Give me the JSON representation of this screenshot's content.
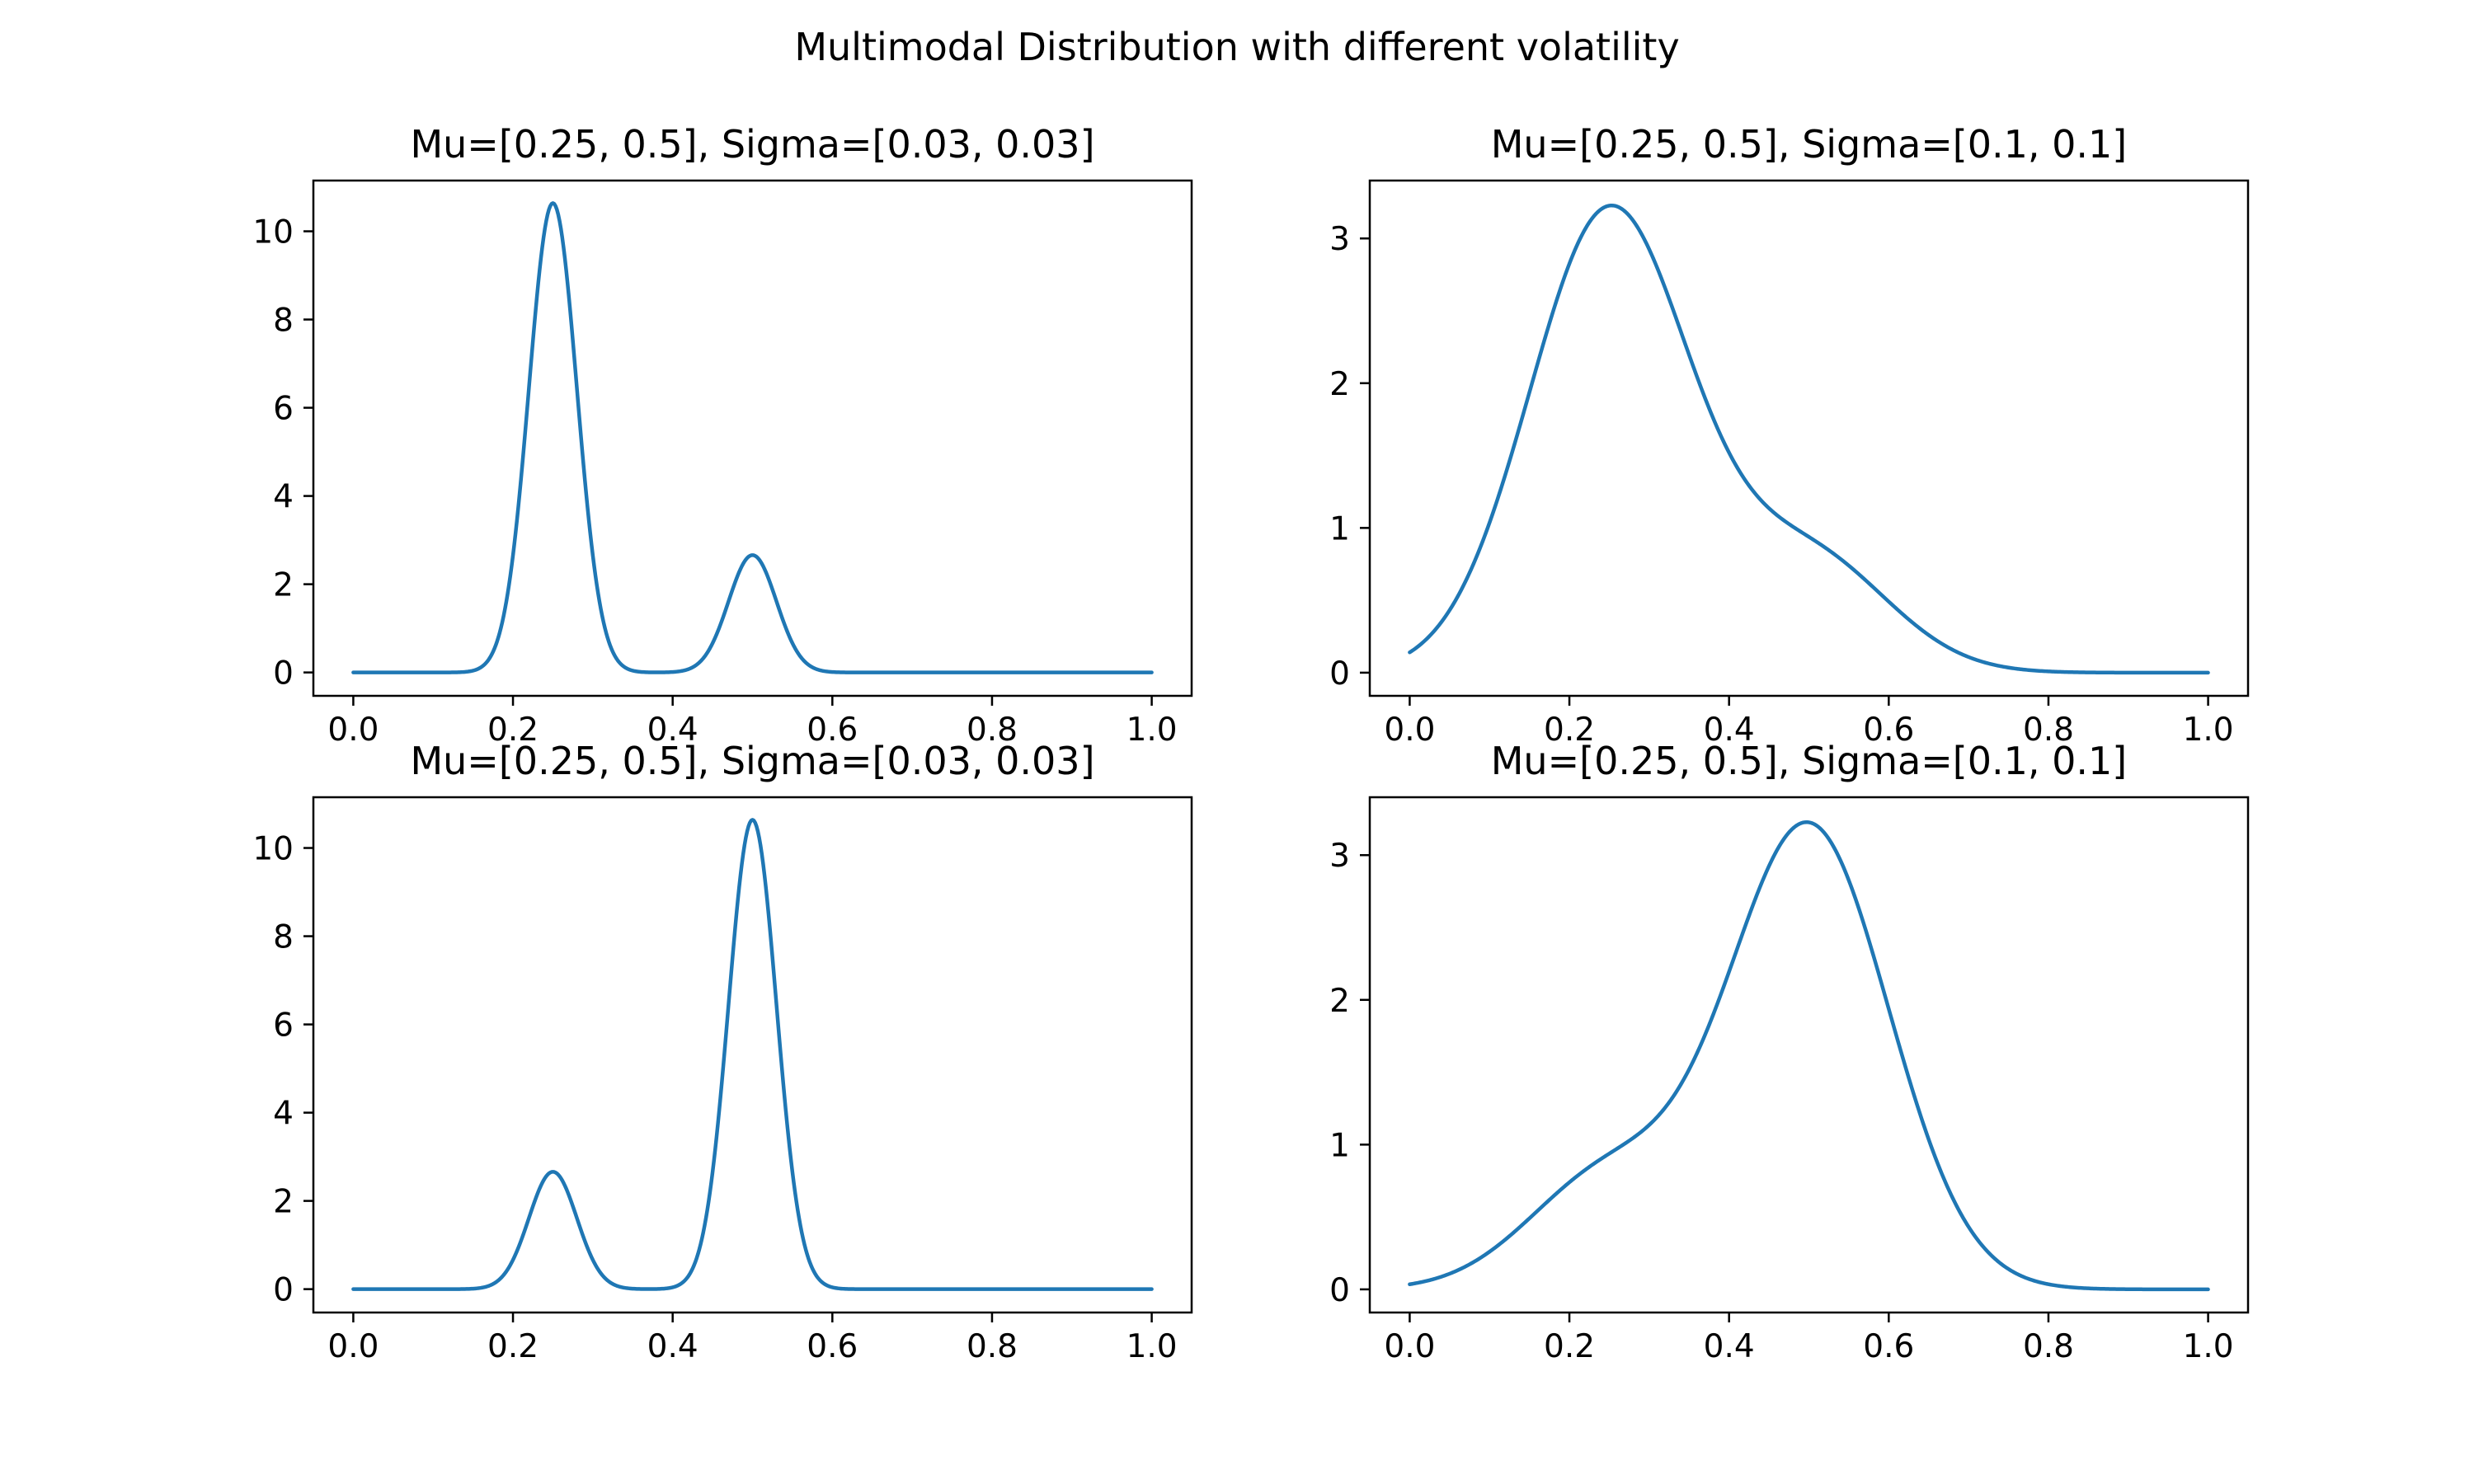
{
  "figure": {
    "suptitle": "Multimodal Distribution with different volatility"
  },
  "chart_data": [
    {
      "type": "line",
      "title": "Mu=[0.25, 0.5], Sigma=[0.03, 0.03]",
      "weights": [
        0.8,
        0.2
      ],
      "mu": [
        0.25,
        0.5
      ],
      "sigma": [
        0.03,
        0.03
      ],
      "x_range": [
        0.0,
        1.0
      ],
      "xlim": [
        -0.05,
        1.05
      ],
      "ylim": [
        -0.53,
        11.15
      ],
      "xticks": [
        0.0,
        0.2,
        0.4,
        0.6,
        0.8,
        1.0
      ],
      "xtick_labels": [
        "0.0",
        "0.2",
        "0.4",
        "0.6",
        "0.8",
        "1.0"
      ],
      "yticks": [
        0,
        2,
        4,
        6,
        8,
        10
      ],
      "ytick_labels": [
        "0",
        "2",
        "4",
        "6",
        "8",
        "10"
      ],
      "color": "#1f77b4"
    },
    {
      "type": "line",
      "title": "Mu=[0.25, 0.5], Sigma=[0.1, 0.1]",
      "weights": [
        0.8,
        0.2
      ],
      "mu": [
        0.25,
        0.5
      ],
      "sigma": [
        0.1,
        0.1
      ],
      "x_range": [
        0.0,
        1.0
      ],
      "xlim": [
        -0.05,
        1.05
      ],
      "ylim": [
        -0.16,
        3.4
      ],
      "xticks": [
        0.0,
        0.2,
        0.4,
        0.6,
        0.8,
        1.0
      ],
      "xtick_labels": [
        "0.0",
        "0.2",
        "0.4",
        "0.6",
        "0.8",
        "1.0"
      ],
      "yticks": [
        0,
        1,
        2,
        3
      ],
      "ytick_labels": [
        "0",
        "1",
        "2",
        "3"
      ],
      "color": "#1f77b4"
    },
    {
      "type": "line",
      "title": "Mu=[0.25, 0.5], Sigma=[0.03, 0.03]",
      "weights": [
        0.2,
        0.8
      ],
      "mu": [
        0.25,
        0.5
      ],
      "sigma": [
        0.03,
        0.03
      ],
      "x_range": [
        0.0,
        1.0
      ],
      "xlim": [
        -0.05,
        1.05
      ],
      "ylim": [
        -0.53,
        11.15
      ],
      "xticks": [
        0.0,
        0.2,
        0.4,
        0.6,
        0.8,
        1.0
      ],
      "xtick_labels": [
        "0.0",
        "0.2",
        "0.4",
        "0.6",
        "0.8",
        "1.0"
      ],
      "yticks": [
        0,
        2,
        4,
        6,
        8,
        10
      ],
      "ytick_labels": [
        "0",
        "2",
        "4",
        "6",
        "8",
        "10"
      ],
      "color": "#1f77b4"
    },
    {
      "type": "line",
      "title": "Mu=[0.25, 0.5], Sigma=[0.1, 0.1]",
      "weights": [
        0.2,
        0.8
      ],
      "mu": [
        0.25,
        0.5
      ],
      "sigma": [
        0.1,
        0.1
      ],
      "x_range": [
        0.0,
        1.0
      ],
      "xlim": [
        -0.05,
        1.05
      ],
      "ylim": [
        -0.16,
        3.4
      ],
      "xticks": [
        0.0,
        0.2,
        0.4,
        0.6,
        0.8,
        1.0
      ],
      "xtick_labels": [
        "0.0",
        "0.2",
        "0.4",
        "0.6",
        "0.8",
        "1.0"
      ],
      "yticks": [
        0,
        1,
        2,
        3
      ],
      "ytick_labels": [
        "0",
        "1",
        "2",
        "3"
      ],
      "color": "#1f77b4"
    }
  ]
}
